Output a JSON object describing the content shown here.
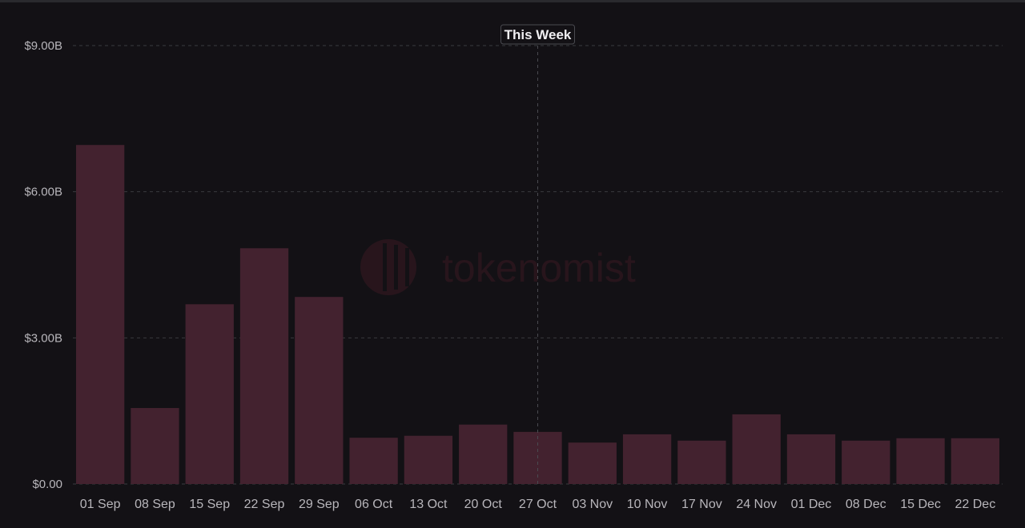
{
  "watermark": "tokenomist",
  "colors": {
    "background": "#131115",
    "bar": "#43222f",
    "grid": "#3a3a3e",
    "tick_text": "#b8b6bb",
    "highlight_text": "#f0eff2"
  },
  "chart_data": {
    "type": "bar",
    "categories": [
      "01 Sep",
      "08 Sep",
      "15 Sep",
      "22 Sep",
      "29 Sep",
      "06 Oct",
      "13 Oct",
      "20 Oct",
      "27 Oct",
      "03 Nov",
      "10 Nov",
      "17 Nov",
      "24 Nov",
      "01 Dec",
      "08 Dec",
      "15 Dec",
      "22 Dec"
    ],
    "values": [
      6.96,
      1.56,
      3.69,
      4.84,
      3.84,
      0.95,
      0.99,
      1.22,
      1.07,
      0.85,
      1.02,
      0.89,
      1.43,
      1.02,
      0.89,
      0.94,
      0.94
    ],
    "unit": "B USD",
    "ylim": [
      0,
      9
    ],
    "yticks": [
      {
        "value": 0,
        "label": "$0.00"
      },
      {
        "value": 3,
        "label": "$3.00B"
      },
      {
        "value": 6,
        "label": "$6.00B"
      },
      {
        "value": 9,
        "label": "$9.00B"
      }
    ],
    "grid": true,
    "hover_label": "This Week",
    "hover_index": 8,
    "title": "",
    "xlabel": "",
    "ylabel": ""
  }
}
